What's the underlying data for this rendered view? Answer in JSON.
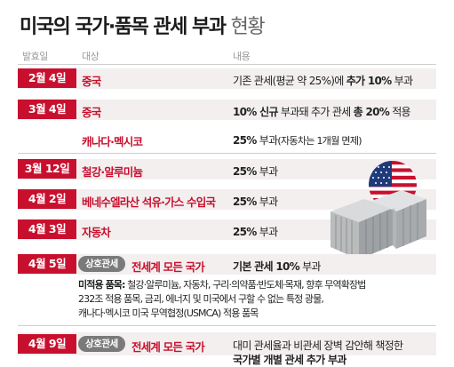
{
  "title": {
    "main": "미국의 국가·품목 관세 부과",
    "light": "현황"
  },
  "headers": {
    "date": "발효일",
    "target": "대상",
    "content": "내용"
  },
  "rows": [
    {
      "date": "2월 4일",
      "target": "중국",
      "c1": "기존 관세(평균 약 25%)에 ",
      "c2": "추가 10%",
      "c3": " 부과"
    },
    {
      "date": "3월 4일",
      "target": "중국",
      "c1": "10% 신규",
      "c2": " 부과돼 추가 관세 ",
      "c3": "총 20%",
      "c4": " 적용"
    },
    {
      "target": "캐나다·멕시코",
      "c1": "25%",
      "c2": " 부과",
      "c3": "(자동차는 1개월 면제)"
    },
    {
      "date": "3월 12일",
      "target": "철강·알루미늄",
      "c1": "25%",
      "c2": " 부과"
    },
    {
      "date": "4월 2일",
      "target": "베네수엘라산 석유·가스 수입국",
      "c1": "25%",
      "c2": " 부과"
    },
    {
      "date": "4월 3일",
      "target": "자동차",
      "c1": "25%",
      "c2": " 부과"
    },
    {
      "date": "4월 5일",
      "badge": "상호관세",
      "target": "전세계 모든 국가",
      "c1": "기본 관세 10%",
      "c2": " 부과",
      "note_label": "미적용 품목:",
      "note_lines": [
        " 철강·알루미늄, 자동차, 구리·의약품·반도체·목재, 향후 무역확장법",
        "232조 적용 품목, 금괴, 에너지 및 미국에서 구할 수 없는 특정 광물,",
        "캐나다·멕시코 미국 무역협정(USMCA) 적용 품목"
      ]
    },
    {
      "date": "4월 9일",
      "badge": "상호관세",
      "target": "전세계 모든 국가",
      "c1": "대미 관세율과 비관세 장벽 감안해 책정한",
      "c2": "국가별 개별 관세 추가 부과"
    }
  ],
  "colors": {
    "accent": "#c8102e",
    "row_bg": "#f3efef",
    "badge": "#7a7a7a"
  },
  "illustration": {
    "flag": "us-flag-icon",
    "containers": "shipping-container-icon"
  }
}
